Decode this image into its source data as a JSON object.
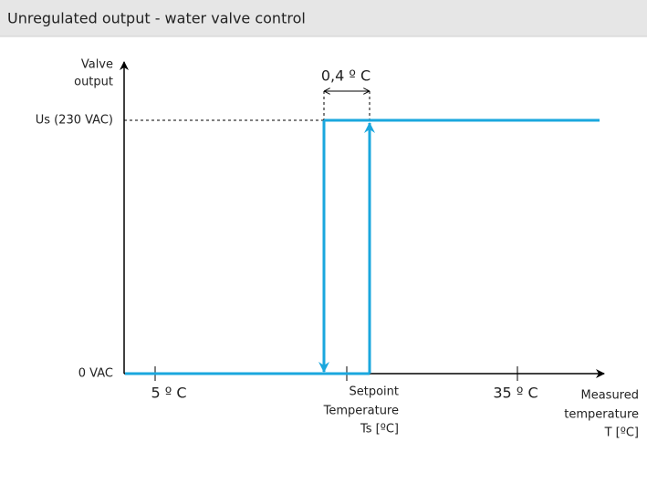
{
  "header": {
    "title": "Unregulated output - water valve control"
  },
  "diagram": {
    "y_axis": {
      "label": [
        "Valve",
        "output"
      ],
      "levels": [
        "Us (230 VAC)",
        "0 VAC"
      ]
    },
    "hysteresis": "0,4 º C",
    "x_axis": {
      "ticks": [
        "5 º C",
        "35 º C"
      ],
      "setpoint": [
        "Setpoint",
        "Temperature",
        "Ts [ºC]"
      ],
      "label": [
        "Measured",
        "temperature",
        "T [ºC]"
      ]
    }
  }
}
